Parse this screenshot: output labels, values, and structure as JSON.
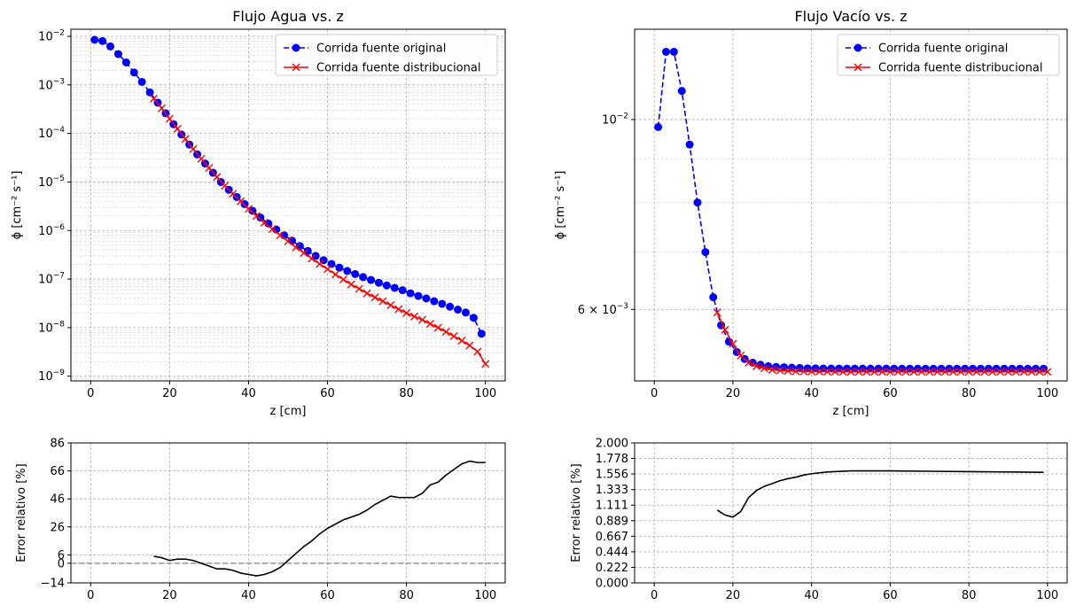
{
  "chart_data": [
    {
      "id": "agua",
      "type": "line",
      "title": "Flujo Agua vs. z",
      "xlabel": "z [cm]",
      "ylabel": "ϕ [cm⁻² s⁻¹]",
      "yscale": "log",
      "xlim": [
        -5,
        105
      ],
      "ylim": [
        8e-10,
        0.014
      ],
      "xticks": [
        0,
        20,
        40,
        60,
        80,
        100
      ],
      "yticks": [
        {
          "value": 1e-09,
          "base": "10",
          "exp": "−9"
        },
        {
          "value": 1e-08,
          "base": "10",
          "exp": "−8"
        },
        {
          "value": 1e-07,
          "base": "10",
          "exp": "−7"
        },
        {
          "value": 1e-06,
          "base": "10",
          "exp": "−6"
        },
        {
          "value": 1e-05,
          "base": "10",
          "exp": "−5"
        },
        {
          "value": 0.0001,
          "base": "10",
          "exp": "−4"
        },
        {
          "value": 0.001,
          "base": "10",
          "exp": "−3"
        },
        {
          "value": 0.01,
          "base": "10",
          "exp": "−2"
        }
      ],
      "grid": true,
      "legend_loc": "top-right",
      "series": [
        {
          "name": "Corrida fuente original",
          "color": "#0000ff",
          "style": "dashed",
          "marker": "circle",
          "x": [
            1,
            3,
            5,
            7,
            9,
            11,
            13,
            15,
            17,
            19,
            21,
            23,
            25,
            27,
            29,
            31,
            33,
            35,
            37,
            39,
            41,
            43,
            45,
            47,
            49,
            51,
            53,
            55,
            57,
            59,
            61,
            63,
            65,
            67,
            69,
            71,
            73,
            75,
            77,
            79,
            81,
            83,
            85,
            87,
            89,
            91,
            93,
            95,
            97,
            99
          ],
          "y": [
            0.0085,
            0.008,
            0.0062,
            0.0043,
            0.0029,
            0.0018,
            0.00115,
            0.0007,
            0.00043,
            0.00026,
            0.000155,
            9.5e-05,
            5.9e-05,
            3.7e-05,
            2.4e-05,
            1.55e-05,
            1e-05,
            6.9e-06,
            4.9e-06,
            3.5e-06,
            2.55e-06,
            1.85e-06,
            1.4e-06,
            1.05e-06,
            8e-07,
            6.2e-07,
            4.8e-07,
            3.8e-07,
            3e-07,
            2.45e-07,
            2.05e-07,
            1.72e-07,
            1.47e-07,
            1.27e-07,
            1.1e-07,
            9.6e-08,
            8.4e-08,
            7.4e-08,
            6.6e-08,
            5.9e-08,
            5.1e-08,
            4.5e-08,
            4e-08,
            3.5e-08,
            3.1e-08,
            2.7e-08,
            2.35e-08,
            2.05e-08,
            1.6e-08,
            7.5e-09
          ]
        },
        {
          "name": "Corrida fuente distribucional",
          "color": "#ff0000",
          "style": "solid",
          "marker": "x",
          "x": [
            16,
            18,
            20,
            22,
            24,
            26,
            28,
            30,
            32,
            34,
            36,
            38,
            40,
            42,
            44,
            46,
            48,
            50,
            52,
            54,
            56,
            58,
            60,
            62,
            64,
            66,
            68,
            70,
            72,
            74,
            76,
            78,
            80,
            82,
            84,
            86,
            88,
            90,
            92,
            94,
            96,
            98,
            100
          ],
          "y": [
            0.00052,
            0.00033,
            0.0002,
            0.000125,
            7.7e-05,
            4.8e-05,
            3e-05,
            1.95e-05,
            1.27e-05,
            8.4e-06,
            5.7e-06,
            4e-06,
            2.8e-06,
            2e-06,
            1.45e-06,
            1.07e-06,
            8e-07,
            6e-07,
            4.5e-07,
            3.45e-07,
            2.65e-07,
            2.05e-07,
            1.6e-07,
            1.25e-07,
            9.8e-08,
            7.8e-08,
            6.3e-08,
            5.1e-08,
            4.2e-08,
            3.5e-08,
            2.9e-08,
            2.4e-08,
            2e-08,
            1.7e-08,
            1.45e-08,
            1.2e-08,
            1e-08,
            8.2e-09,
            6.7e-09,
            5.4e-09,
            4.3e-09,
            3.2e-09,
            1.8e-09
          ]
        }
      ]
    },
    {
      "id": "vacio",
      "type": "line",
      "title": "Flujo Vacío vs. z",
      "xlabel": "z [cm]",
      "ylabel": "ϕ [cm⁻² s⁻¹]",
      "yscale": "log",
      "xlim": [
        -5,
        105
      ],
      "ylim": [
        0.00495,
        0.01275
      ],
      "xticks": [
        0,
        20,
        40,
        60,
        80,
        100
      ],
      "yticks": [
        {
          "value": 0.01,
          "base": "10",
          "exp": "−2",
          "coef": ""
        },
        {
          "value": 0.006,
          "base": "10",
          "exp": "−3",
          "coef": "6 × "
        }
      ],
      "yticks_minor": [
        0.006,
        0.007,
        0.008,
        0.009,
        0.01
      ],
      "grid": true,
      "legend_loc": "top-right",
      "series": [
        {
          "name": "Corrida fuente original",
          "color": "#0000ff",
          "style": "dashed",
          "marker": "circle",
          "x": [
            1,
            3,
            5,
            7,
            9,
            11,
            13,
            15,
            17,
            19,
            21,
            23,
            25,
            27,
            29,
            31,
            33,
            35,
            37,
            39,
            41,
            43,
            45,
            47,
            49,
            51,
            53,
            55,
            57,
            59,
            61,
            63,
            65,
            67,
            69,
            71,
            73,
            75,
            77,
            79,
            81,
            83,
            85,
            87,
            89,
            91,
            93,
            95,
            97,
            99
          ],
          "y": [
            0.0098,
            0.012,
            0.012,
            0.0108,
            0.00935,
            0.008,
            0.007,
            0.0062,
            0.00575,
            0.0055,
            0.00535,
            0.00525,
            0.0052,
            0.00517,
            0.00515,
            0.00514,
            0.005135,
            0.00513,
            0.005125,
            0.00512,
            0.00512,
            0.005118,
            0.005118,
            0.005117,
            0.005117,
            0.005117,
            0.005116,
            0.005116,
            0.005116,
            0.005116,
            0.005115,
            0.005115,
            0.005115,
            0.005115,
            0.005115,
            0.005115,
            0.005115,
            0.005115,
            0.005115,
            0.005115,
            0.005115,
            0.005115,
            0.005115,
            0.005115,
            0.005115,
            0.005115,
            0.005115,
            0.005115,
            0.005115,
            0.005115
          ]
        },
        {
          "name": "Corrida fuente distribucional",
          "color": "#ff0000",
          "style": "solid",
          "marker": "x",
          "x": [
            16,
            18,
            20,
            22,
            24,
            26,
            28,
            30,
            32,
            34,
            36,
            38,
            40,
            42,
            44,
            46,
            48,
            50,
            52,
            54,
            56,
            58,
            60,
            62,
            64,
            66,
            68,
            70,
            72,
            74,
            76,
            78,
            80,
            82,
            84,
            86,
            88,
            90,
            92,
            94,
            96,
            98,
            100
          ],
          "y": [
            0.00595,
            0.00568,
            0.00547,
            0.0053,
            0.0052,
            0.00515,
            0.00512,
            0.0051,
            0.00509,
            0.005085,
            0.00508,
            0.005077,
            0.005075,
            0.005075,
            0.005074,
            0.005074,
            0.005073,
            0.005073,
            0.005073,
            0.005073,
            0.005073,
            0.005073,
            0.005073,
            0.005073,
            0.005073,
            0.005073,
            0.005073,
            0.005073,
            0.005073,
            0.005073,
            0.005073,
            0.005073,
            0.005073,
            0.005073,
            0.005073,
            0.005073,
            0.005073,
            0.005073,
            0.005073,
            0.005073,
            0.005073,
            0.005073,
            0.005073
          ]
        }
      ]
    },
    {
      "id": "error_agua",
      "type": "line",
      "title": "",
      "xlabel": "",
      "ylabel": "Error relativo [%]",
      "xlim": [
        -5,
        105
      ],
      "ylim": [
        -14,
        86
      ],
      "xticks": [
        0,
        20,
        40,
        60,
        80,
        100
      ],
      "yticks": [
        -14,
        0,
        6,
        26,
        46,
        66,
        86
      ],
      "zero_line": 0,
      "grid": true,
      "series": [
        {
          "name": "",
          "color": "#000000",
          "style": "solid",
          "x": [
            16,
            18,
            20,
            22,
            24,
            26,
            28,
            30,
            32,
            34,
            36,
            38,
            40,
            42,
            44,
            46,
            48,
            50,
            52,
            54,
            56,
            58,
            60,
            62,
            64,
            66,
            68,
            70,
            72,
            74,
            76,
            78,
            80,
            82,
            84,
            86,
            88,
            90,
            92,
            94,
            96,
            98,
            100
          ],
          "y": [
            5,
            4,
            2,
            3,
            3,
            2,
            0,
            -2,
            -4,
            -4,
            -5,
            -7,
            -8,
            -9,
            -8,
            -6,
            -3,
            2,
            7,
            12,
            16,
            21,
            25,
            28,
            31,
            33,
            35,
            38,
            42,
            45,
            48,
            47,
            47,
            47,
            50,
            56,
            58,
            63,
            67,
            71,
            73,
            72,
            72
          ]
        }
      ]
    },
    {
      "id": "error_vacio",
      "type": "line",
      "title": "",
      "xlabel": "",
      "ylabel": "Error relativo [%]",
      "xlim": [
        -5,
        105
      ],
      "ylim": [
        0,
        2
      ],
      "xticks": [
        0,
        20,
        40,
        60,
        80,
        100
      ],
      "yticks": [
        0.0,
        0.222,
        0.444,
        0.667,
        0.889,
        1.111,
        1.333,
        1.556,
        1.778,
        2.0
      ],
      "ytick_labels": [
        "0.000",
        "0.222",
        "0.444",
        "0.667",
        "0.889",
        "1.111",
        "1.333",
        "1.556",
        "1.778",
        "2.000"
      ],
      "grid": true,
      "series": [
        {
          "name": "",
          "color": "#000000",
          "style": "solid",
          "x": [
            16,
            18,
            20,
            22,
            24,
            26,
            28,
            30,
            32,
            34,
            36,
            38,
            40,
            44,
            50,
            60,
            70,
            80,
            90,
            99
          ],
          "y": [
            1.04,
            0.97,
            0.94,
            1.02,
            1.22,
            1.32,
            1.38,
            1.42,
            1.46,
            1.49,
            1.51,
            1.54,
            1.56,
            1.585,
            1.6,
            1.6,
            1.595,
            1.59,
            1.585,
            1.58
          ]
        }
      ]
    }
  ]
}
